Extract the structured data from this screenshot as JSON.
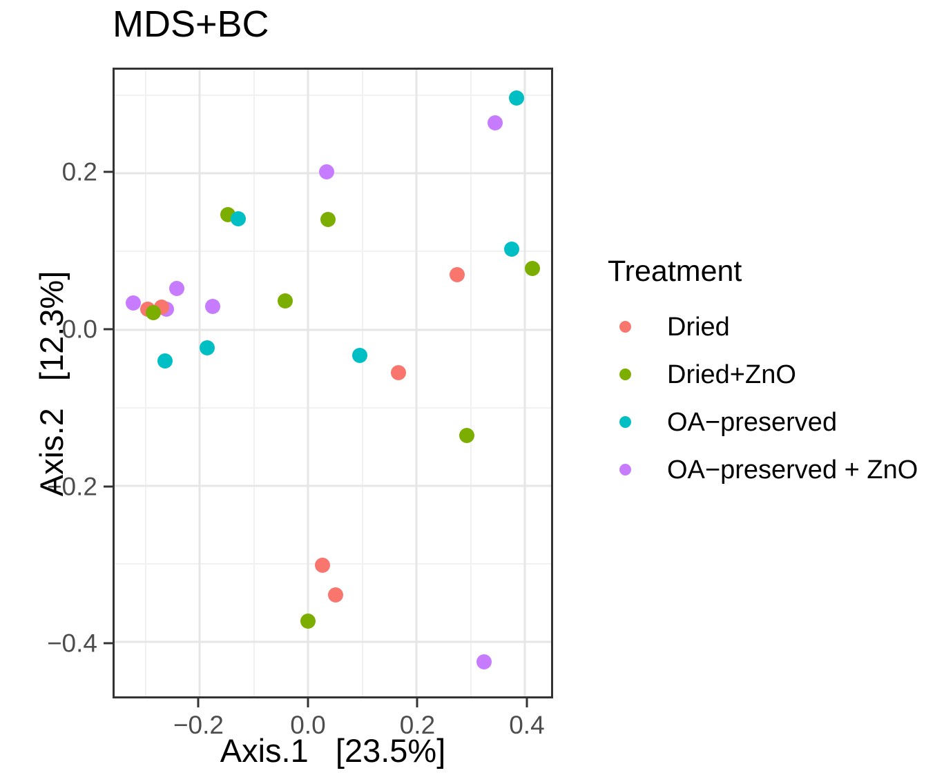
{
  "chart_data": {
    "type": "scatter",
    "title": "MDS+BC",
    "xlabel": "Axis.1   [23.5%]",
    "ylabel": "Axis.2   [12.3%]",
    "xlim": [
      -0.357,
      0.448
    ],
    "ylim": [
      -0.47,
      0.333
    ],
    "grid": "major+minor",
    "x_ticks": {
      "major": [
        -0.2,
        0.0,
        0.2,
        0.4
      ],
      "labels": [
        "−0.2",
        "0.0",
        "0.2",
        "0.4"
      ],
      "minor": [
        -0.3,
        -0.1,
        0.1,
        0.3
      ]
    },
    "y_ticks": {
      "major": [
        0.2,
        0.0,
        -0.2,
        -0.4
      ],
      "labels": [
        "0.2",
        "0.0",
        "−0.2",
        "−0.4"
      ],
      "minor": [
        0.3,
        0.1,
        -0.1,
        -0.3
      ]
    },
    "legend": {
      "title": "Treatment",
      "position": "right"
    },
    "series": [
      {
        "name": "Dried",
        "color": "#F8766D",
        "points": [
          [
            -0.296,
            0.026
          ],
          [
            -0.27,
            0.029
          ],
          [
            0.275,
            0.07
          ],
          [
            0.166,
            -0.055
          ],
          [
            0.026,
            -0.302
          ],
          [
            0.05,
            -0.34
          ]
        ]
      },
      {
        "name": "Dried+ZnO",
        "color": "#7CAE00",
        "points": [
          [
            -0.286,
            0.022
          ],
          [
            -0.148,
            0.147
          ],
          [
            0.036,
            0.141
          ],
          [
            -0.043,
            0.037
          ],
          [
            0.413,
            0.078
          ],
          [
            0.293,
            -0.136
          ],
          [
            0.0,
            -0.374
          ]
        ]
      },
      {
        "name": "OA−preserved",
        "color": "#00BFC4",
        "points": [
          [
            -0.186,
            -0.023
          ],
          [
            -0.264,
            -0.04
          ],
          [
            -0.129,
            0.142
          ],
          [
            0.384,
            0.297
          ],
          [
            0.376,
            0.103
          ],
          [
            0.095,
            -0.033
          ]
        ]
      },
      {
        "name": "OA−preserved + ZnO",
        "color": "#C77CFF",
        "points": [
          [
            -0.323,
            0.034
          ],
          [
            -0.261,
            0.026
          ],
          [
            -0.243,
            0.053
          ],
          [
            -0.176,
            0.03
          ],
          [
            0.034,
            0.202
          ],
          [
            0.345,
            0.265
          ],
          [
            0.324,
            -0.426
          ]
        ]
      }
    ],
    "draw_order": [
      3,
      0,
      1,
      2
    ],
    "colors": {
      "panel_border": "#333333",
      "grid_major": "#e6e6e6",
      "grid_minor": "#f1f1f1",
      "tick_label": "#4d4d4d"
    }
  }
}
